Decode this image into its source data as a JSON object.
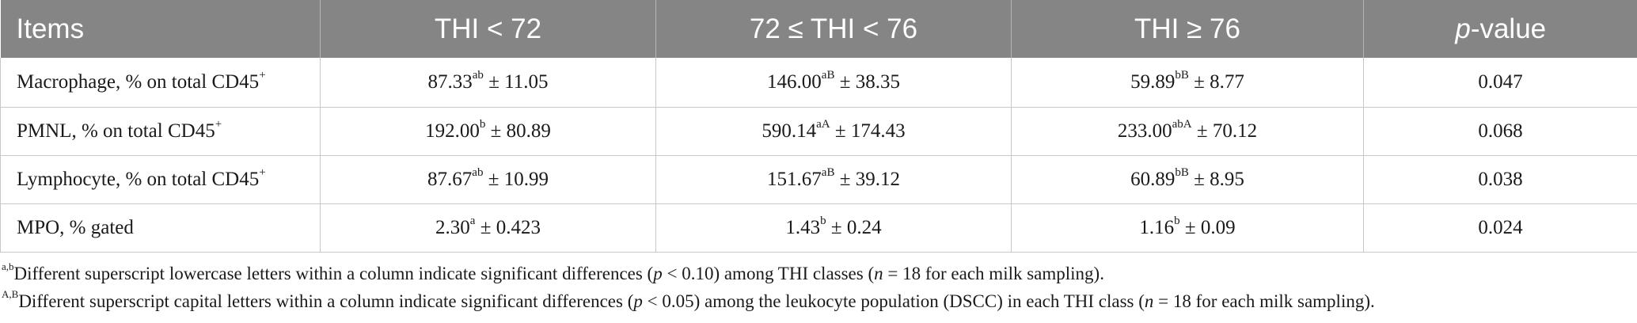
{
  "table": {
    "headers": [
      "Items",
      "THI < 72",
      "72 ≤ THI < 76",
      "THI ≥ 76",
      "-value"
    ],
    "header_p": "p",
    "rows": [
      {
        "item": "Macrophage, % on total CD45",
        "item_sup": "+",
        "cells": [
          {
            "value": "87.33",
            "sup": "ab",
            "sd": " ± 11.05"
          },
          {
            "value": "146.00",
            "sup": "aB",
            "sd": " ± 38.35"
          },
          {
            "value": "59.89",
            "sup": "bB",
            "sd": " ± 8.77"
          }
        ],
        "p_value": "0.047"
      },
      {
        "item": "PMNL, % on total CD45",
        "item_sup": "+",
        "cells": [
          {
            "value": "192.00",
            "sup": "b",
            "sd": " ± 80.89"
          },
          {
            "value": "590.14",
            "sup": "aA",
            "sd": " ± 174.43"
          },
          {
            "value": "233.00",
            "sup": "abA",
            "sd": " ± 70.12"
          }
        ],
        "p_value": "0.068"
      },
      {
        "item": "Lymphocyte, % on total CD45",
        "item_sup": "+",
        "cells": [
          {
            "value": "87.67",
            "sup": "ab",
            "sd": " ± 10.99"
          },
          {
            "value": "151.67",
            "sup": "aB",
            "sd": " ± 39.12"
          },
          {
            "value": "60.89",
            "sup": "bB",
            "sd": " ± 8.95"
          }
        ],
        "p_value": "0.038"
      },
      {
        "item": "MPO, % gated",
        "item_sup": "",
        "cells": [
          {
            "value": "2.30",
            "sup": "a",
            "sd": " ± 0.423"
          },
          {
            "value": "1.43",
            "sup": "b",
            "sd": " ± 0.24"
          },
          {
            "value": "1.16",
            "sup": "b",
            "sd": " ± 0.09"
          }
        ],
        "p_value": "0.024"
      }
    ]
  },
  "footnotes": [
    {
      "sup": "a,b",
      "text1": "Different superscript lowercase letters within a column indicate significant differences (",
      "p": "p",
      "text2": " < 0.10) among THI classes (",
      "n": "n",
      "text3": " = 18 for each milk sampling)."
    },
    {
      "sup": "A,B",
      "text1": "Different superscript capital letters within a column indicate significant differences (",
      "p": "p",
      "text2": " < 0.05) among the leukocyte population (DSCC) in each THI class (",
      "n": "n",
      "text3": " = 18 for each milk sampling)."
    }
  ],
  "colors": {
    "header_bg": "#858585",
    "header_text": "#ffffff",
    "grid": "#c8c8c8"
  }
}
